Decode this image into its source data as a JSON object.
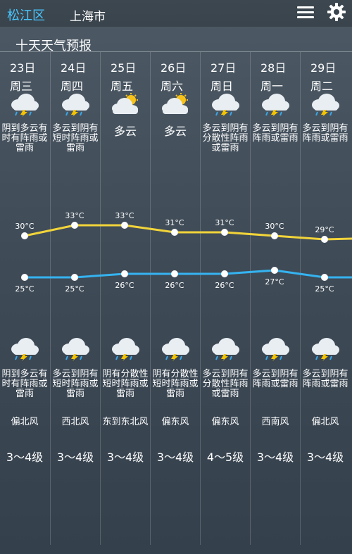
{
  "header": {
    "district": "松江区",
    "city": "上海市",
    "menu_icon": "menu-icon",
    "settings_icon": "gear-icon"
  },
  "section_title": "十天天气预报",
  "days": [
    {
      "date": "23日",
      "weekday": "周三",
      "day_icon": "thunderstorm-cloud-icon",
      "day_desc": "阴到多云有时有阵雨或雷雨",
      "high": "30°C",
      "low": "25°C",
      "night_icon": "thunderstorm-cloud-icon",
      "night_desc": "阴到多云有时有阵雨或雷雨",
      "wind_dir": "偏北风",
      "wind_level": "3～4级"
    },
    {
      "date": "24日",
      "weekday": "周四",
      "day_icon": "thunderstorm-cloud-icon",
      "day_desc": "多云到阴有短时阵雨或雷雨",
      "high": "33°C",
      "low": "25°C",
      "night_icon": "thunderstorm-cloud-icon",
      "night_desc": "多云到阴有短时阵雨或雷雨",
      "wind_dir": "西北风",
      "wind_level": "3～4级"
    },
    {
      "date": "25日",
      "weekday": "周五",
      "day_icon": "partly-cloudy-icon",
      "day_desc": "多云",
      "high": "33°C",
      "low": "26°C",
      "night_icon": "thunderstorm-cloud-icon",
      "night_desc": "阴有分散性短时阵雨或雷雨",
      "wind_dir": "东到东北风",
      "wind_level": "3～4级"
    },
    {
      "date": "26日",
      "weekday": "周六",
      "day_icon": "partly-cloudy-icon",
      "day_desc": "多云",
      "high": "31°C",
      "low": "26°C",
      "night_icon": "thunderstorm-cloud-icon",
      "night_desc": "阴有分散性短时阵雨或雷雨",
      "wind_dir": "偏东风",
      "wind_level": "3～4级"
    },
    {
      "date": "27日",
      "weekday": "周日",
      "day_icon": "thunderstorm-cloud-icon",
      "day_desc": "多云到阴有分散性阵雨或雷雨",
      "high": "31°C",
      "low": "26°C",
      "night_icon": "thunderstorm-cloud-icon",
      "night_desc": "多云到阴有分散性阵雨或雷雨",
      "wind_dir": "偏东风",
      "wind_level": "4～5级"
    },
    {
      "date": "28日",
      "weekday": "周一",
      "day_icon": "thunderstorm-cloud-icon",
      "day_desc": "多云到阴有阵雨或雷雨",
      "high": "30°C",
      "low": "27°C",
      "night_icon": "thunderstorm-cloud-icon",
      "night_desc": "多云到阴有阵雨或雷雨",
      "wind_dir": "西南风",
      "wind_level": "3～4级"
    },
    {
      "date": "29日",
      "weekday": "周二",
      "day_icon": "thunderstorm-cloud-icon",
      "day_desc": "多云到阴有阵雨或雷雨",
      "high": "29°C",
      "low": "25°C",
      "night_icon": "thunderstorm-cloud-icon",
      "night_desc": "多云到阴有阵雨或雷雨",
      "wind_dir": "偏北风",
      "wind_level": "3～4级"
    }
  ],
  "colors": {
    "high_line": "#f2d43a",
    "low_line": "#35b3f0",
    "district_text": "#49c6ff"
  }
}
